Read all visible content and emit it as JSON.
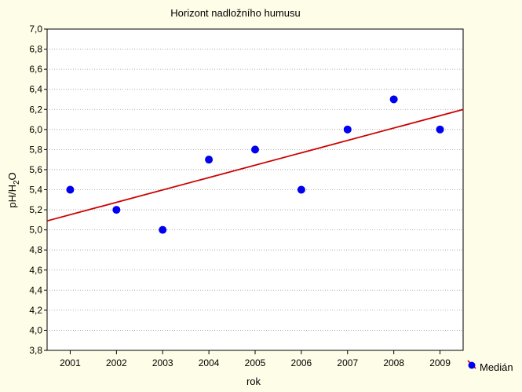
{
  "chart_data": {
    "type": "scatter",
    "title": "Horizont nadložního humusu",
    "xlabel": "rok",
    "ylabel": {
      "base": "pH/H",
      "subscript": "2",
      "suffix": "O"
    },
    "x": [
      2001,
      2002,
      2003,
      2004,
      2005,
      2006,
      2007,
      2008,
      2009
    ],
    "y": [
      5.4,
      5.2,
      5.0,
      5.7,
      5.8,
      5.4,
      6.0,
      6.3,
      6.0
    ],
    "x_ticks": [
      "2001",
      "2002",
      "2003",
      "2004",
      "2005",
      "2006",
      "2007",
      "2008",
      "2009"
    ],
    "y_ticks": [
      "3,8",
      "4,0",
      "4,2",
      "4,4",
      "4,6",
      "4,8",
      "5,0",
      "5,2",
      "5,4",
      "5,6",
      "5,8",
      "6,0",
      "6,2",
      "6,4",
      "6,6",
      "6,8",
      "7,0"
    ],
    "xlim": [
      2000.5,
      2009.5
    ],
    "ylim": [
      3.8,
      7.0
    ],
    "y_tick_step": 0.2,
    "grid": "horizontal-dotted",
    "trendline": {
      "type": "linear",
      "color": "#cc0000"
    },
    "legend": {
      "position": "bottom-right",
      "entries": [
        "Medián"
      ]
    },
    "colors": {
      "point": "#0000ee",
      "trend": "#cc0000",
      "background": "#fefde7",
      "plot_background": "#ffffff"
    }
  }
}
